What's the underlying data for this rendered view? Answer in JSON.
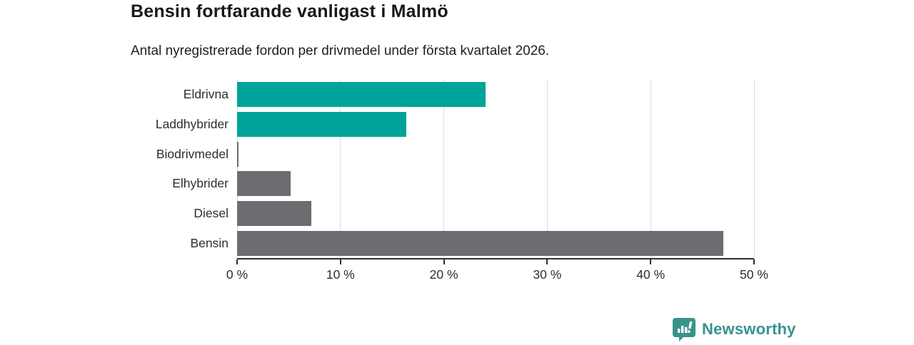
{
  "header": {
    "title": "Bensin fortfarande vanligast i Malmö",
    "subtitle": "Antal nyregistrerade fordon per drivmedel under första kvartalet 2026."
  },
  "chart_data": {
    "type": "bar",
    "orientation": "horizontal",
    "title": "Bensin fortfarande vanligast i Malmö",
    "subtitle": "Antal nyregistrerade fordon per drivmedel under första kvartalet 2026.",
    "categories": [
      "Eldrivna",
      "Laddhybrider",
      "Biodrivmedel",
      "Elhybrider",
      "Diesel",
      "Bensin"
    ],
    "values": [
      24.0,
      16.4,
      0.1,
      5.2,
      7.2,
      47.0
    ],
    "unit": "%",
    "xlim": [
      0,
      50
    ],
    "xticks": [
      0,
      10,
      20,
      30,
      40,
      50
    ],
    "xtick_labels": [
      "0 %",
      "10 %",
      "20 %",
      "30 %",
      "40 %",
      "50 %"
    ],
    "bar_colors": [
      "#00a49a",
      "#00a49a",
      "#6c6c71",
      "#6c6c71",
      "#6c6c71",
      "#6c6c71"
    ],
    "grid": true,
    "legend": null,
    "ylabel": "",
    "xlabel": ""
  },
  "colors": {
    "accent_teal": "#00a49a",
    "neutral_gray": "#6c6c71",
    "gridline": "#dcdcdc",
    "axis": "#2f2f2f",
    "text": "#191919",
    "logo": "#38938d"
  },
  "branding": {
    "logo_text": "Newsworthy",
    "logo_icon": "bar-chart-badge-icon"
  }
}
